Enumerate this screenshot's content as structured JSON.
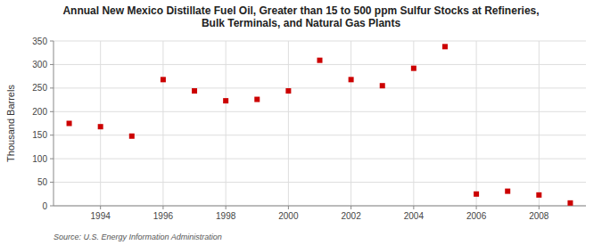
{
  "chart_data": {
    "type": "scatter",
    "title": "Annual New Mexico Distillate Fuel Oil, Greater than 15 to 500 ppm Sulfur Stocks at Refineries,\nBulk Terminals, and Natural Gas Plants",
    "ylabel": "Thousand Barrels",
    "source": "Source: U.S. Energy Information Administration",
    "x": [
      1993,
      1994,
      1995,
      1996,
      1997,
      1998,
      1999,
      2000,
      2001,
      2002,
      2003,
      2004,
      2005,
      2006,
      2007,
      2008,
      2009
    ],
    "values": [
      175,
      168,
      148,
      268,
      244,
      223,
      226,
      244,
      309,
      268,
      255,
      292,
      338,
      25,
      31,
      23,
      6
    ],
    "color": "#cc0000",
    "marker": "square",
    "xlim": [
      1992.5,
      2009.5
    ],
    "ylim": [
      0,
      350
    ],
    "xticks": [
      1994,
      1996,
      1998,
      2000,
      2002,
      2004,
      2006,
      2008
    ],
    "yticks": [
      0,
      50,
      100,
      150,
      200,
      250,
      300,
      350
    ],
    "grid": true
  }
}
